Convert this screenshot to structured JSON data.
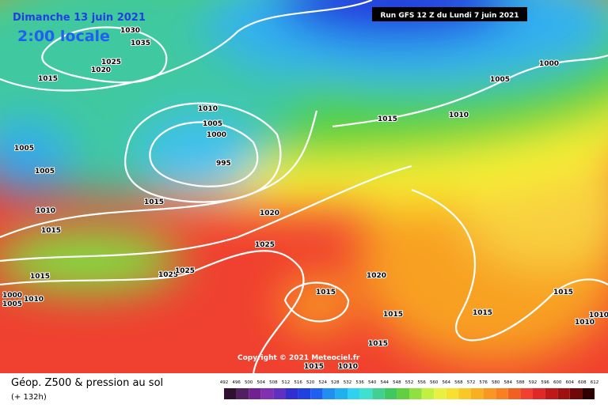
{
  "header": {
    "date": "Dimanche 13 juin 2021",
    "local_time": "2:00 locale",
    "run": "Run GFS 12 Z du Lundi 7 juin 2021"
  },
  "copyright": "Copyright © 2021 Meteociel.fr",
  "legend": {
    "title": "Géop. Z500 & pression au sol",
    "subtitle": "(+ 132h)",
    "levels": [
      492,
      496,
      500,
      504,
      508,
      512,
      516,
      520,
      524,
      528,
      532,
      536,
      540,
      544,
      548,
      552,
      556,
      560,
      564,
      568,
      572,
      576,
      580,
      584,
      588,
      592,
      596,
      600,
      604,
      608,
      612
    ]
  },
  "isobar_labels": [
    1030,
    1035,
    1025,
    1020,
    1015,
    1010,
    1005,
    1000,
    995,
    1005,
    1005,
    1015,
    1010,
    1015,
    1020,
    1025,
    1025,
    1025,
    1015,
    1000,
    1005,
    1010,
    1015,
    1020,
    1015,
    1015,
    1015,
    1010,
    1015,
    1010,
    1005,
    1000,
    1015,
    1015,
    1010,
    1010
  ]
}
